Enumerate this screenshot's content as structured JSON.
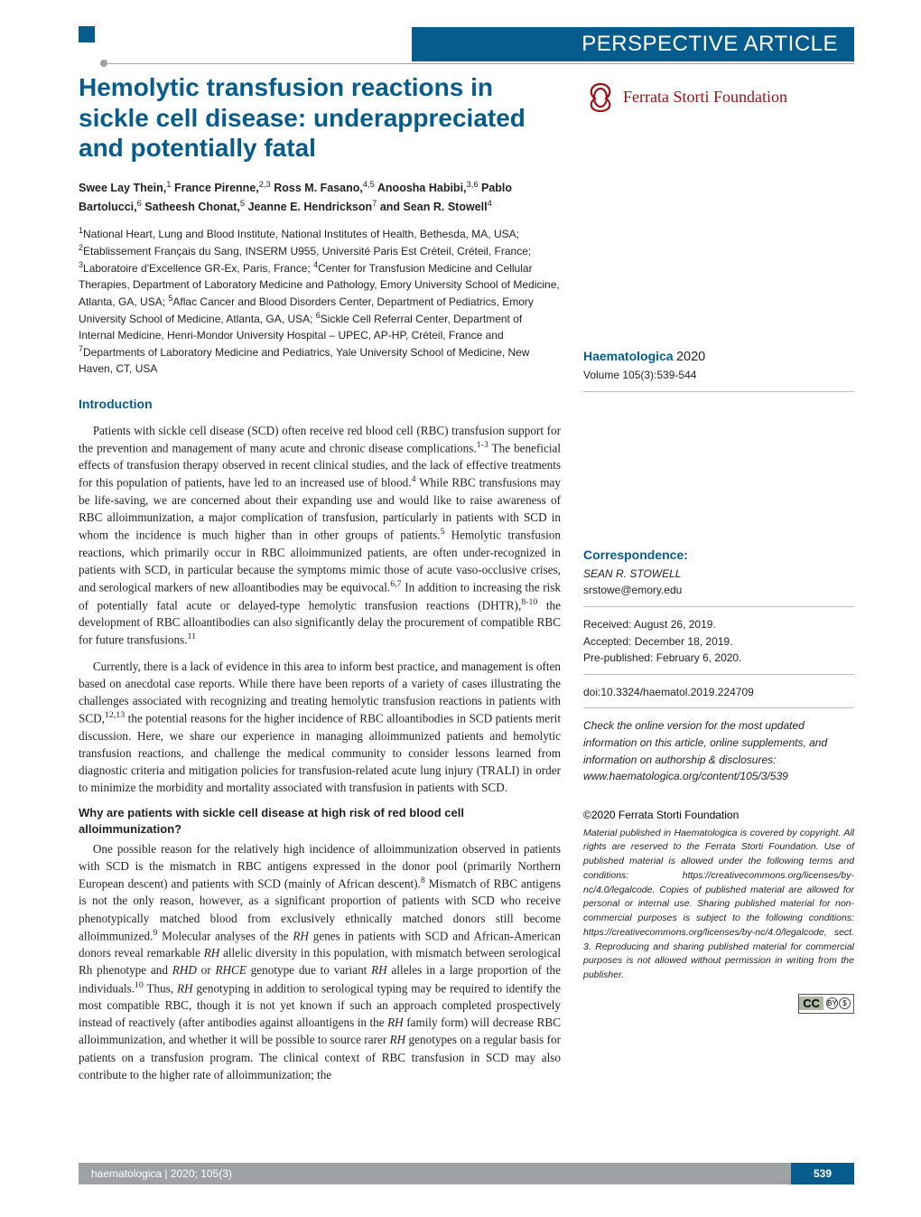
{
  "colors": {
    "brand_blue": "#065d8d",
    "brand_red": "#9a1216",
    "grey": "#9ea2a4",
    "text": "#222222",
    "bg": "#ffffff"
  },
  "typography": {
    "title_fontsize": 28,
    "body_fontsize": 13.2,
    "side_fontsize": 12,
    "heading_fontsize": 14
  },
  "article_type": "PERSPECTIVE ARTICLE",
  "title": "Hemolytic transfusion reactions in sickle cell disease: underappreciated and potentially fatal",
  "foundation_name": "Ferrata Storti Foundation",
  "authors_html": "Swee Lay Thein,<sup>1</sup> France Pirenne,<sup>2,3</sup> Ross M. Fasano,<sup>4,5</sup> Anoosha Habibi,<sup>3,6</sup> Pablo Bartolucci,<sup>6</sup> Satheesh Chonat,<sup>5</sup> Jeanne E. Hendrickson<sup>7</sup> and Sean R. Stowell<sup>4</sup>",
  "affiliations_html": "<sup>1</sup>National Heart, Lung and Blood Institute, National Institutes of Health, Bethesda, MA, USA; <sup>2</sup>Etablissement Français du Sang, INSERM U955, Université Paris Est Créteil, Créteil, France; <sup>3</sup>Laboratoire d'Excellence GR-Ex, Paris, France; <sup>4</sup>Center for Transfusion Medicine and Cellular Therapies, Department of Laboratory Medicine and Pathology, Emory University School of Medicine, Atlanta, GA, USA; <sup>5</sup>Aflac Cancer and Blood Disorders Center, Department of Pediatrics, Emory University School of Medicine, Atlanta, GA, USA; <sup>6</sup>Sickle Cell Referral Center, Department of Internal Medicine, Henri-Mondor University Hospital – UPEC, AP-HP, Créteil, France and <sup>7</sup>Departments of Laboratory Medicine and Pediatrics, Yale University School of Medicine, New Haven, CT, USA",
  "section_intro": "Introduction",
  "para1_html": "Patients with sickle cell disease (SCD) often receive red blood cell (RBC) transfusion support for the prevention and management of many acute and chronic disease complications.<sup>1-3</sup> The beneficial effects of transfusion therapy observed in recent clinical studies, and the lack of effective treatments for this population of patients, have led to an increased use of blood.<sup>4</sup> While RBC transfusions may be life-saving, we are concerned about their expanding use and would like to raise awareness of RBC alloimmunization, a major complication of transfusion, particularly in patients with SCD in whom the incidence is much higher than in other groups of patients.<sup>5</sup> Hemolytic transfusion reactions, which primarily occur in RBC alloimmunized patients, are often under-recognized in patients with SCD, in particular because the symptoms mimic those of acute vaso-occlusive crises, and serological markers of new alloantibodies may be equivocal.<sup>6,7</sup> In addition to increasing the risk of potentially fatal acute or delayed-type hemolytic transfusion reactions (DHTR),<sup>8-10</sup> the development of RBC alloantibodies can also significantly delay the procurement of compatible RBC for future transfusions.<sup>11</sup>",
  "para2_html": "Currently, there is a lack of evidence in this area to inform best practice, and management is often based on anecdotal case reports. While there have been reports of a variety of cases illustrating the challenges associated with recognizing and treating hemolytic transfusion reactions in patients with SCD,<sup>12,13</sup> the potential reasons for the higher incidence of RBC alloantibodies in SCD patients merit discussion. Here, we share our experience in managing alloimmunized patients and hemolytic transfusion reactions, and challenge the medical community to consider lessons learned from diagnostic criteria and mitigation policies for transfusion-related acute lung injury (TRALI) in order to minimize the morbidity and mortality associated with transfusion in patients with SCD.",
  "subheading1": "Why are patients with sickle cell disease at high risk of red blood cell alloimmunization?",
  "para3_html": "One possible reason for the relatively high incidence of alloimmunization observed in patients with SCD is the mismatch in RBC antigens expressed in the donor pool (primarily Northern European descent) and patients with SCD (mainly of African descent).<sup>8</sup> Mismatch of RBC antigens is not the only reason, however, as a significant proportion of patients with SCD who receive phenotypically matched blood from exclusively ethnically matched donors still become alloimmunized.<sup>9</sup> Molecular analyses of the <em>RH</em> genes in patients with SCD and African-American donors reveal remarkable <em>RH</em> allelic diversity in this population, with mismatch between serological Rh phenotype and <em>RHD</em> or <em>RHCE</em> genotype due to variant <em>RH</em> alleles in a large proportion of the individuals.<sup>10</sup> Thus, <em>RH</em> genotyping in addition to serological typing may be required to identify the most compatible RBC, though it is not yet known if such an approach completed prospectively instead of reactively (after antibodies against alloantigens in the <em>RH</em> family form) will decrease RBC alloimmunization, and whether it will be possible to source rarer <em>RH</em> genotypes on a regular basis for patients on a transfusion program. The clinical context of RBC transfusion in SCD may also contribute to the higher rate of alloimmunization; the",
  "sidebar": {
    "journal": "Haematologica",
    "year": "2020",
    "volume_line": "Volume 105(3):539-544",
    "correspondence_label": "Correspondence:",
    "corr_name": "SEAN R. STOWELL",
    "corr_email": "srstowe@emory.edu",
    "received": "Received: August 26, 2019.",
    "accepted": "Accepted: December 18, 2019.",
    "prepub": "Pre-published: February 6, 2020.",
    "doi": "doi:10.3324/haematol.2019.224709",
    "check_online": "Check the online version for the most updated information on this article, online supplements, and information on authorship & disclosures: www.haematologica.org/content/105/3/539",
    "copyright": "©2020 Ferrata Storti Foundation",
    "license_text": "Material published in Haematologica is covered by copyright. All rights are reserved to the Ferrata Storti Foundation. Use of published material is allowed under the following terms and conditions:\nhttps://creativecommons.org/licenses/by-nc/4.0/legalcode. Copies of published material are allowed for personal or internal use. Sharing published material for non-commercial purposes is subject to the following conditions:\nhttps://creativecommons.org/licenses/by-nc/4.0/legalcode, sect. 3. Reproducing and sharing published material for commercial purposes is not allowed without permission in writing from the publisher."
  },
  "footer": {
    "left": "haematologica | 2020; 105(3)",
    "page": "539"
  }
}
